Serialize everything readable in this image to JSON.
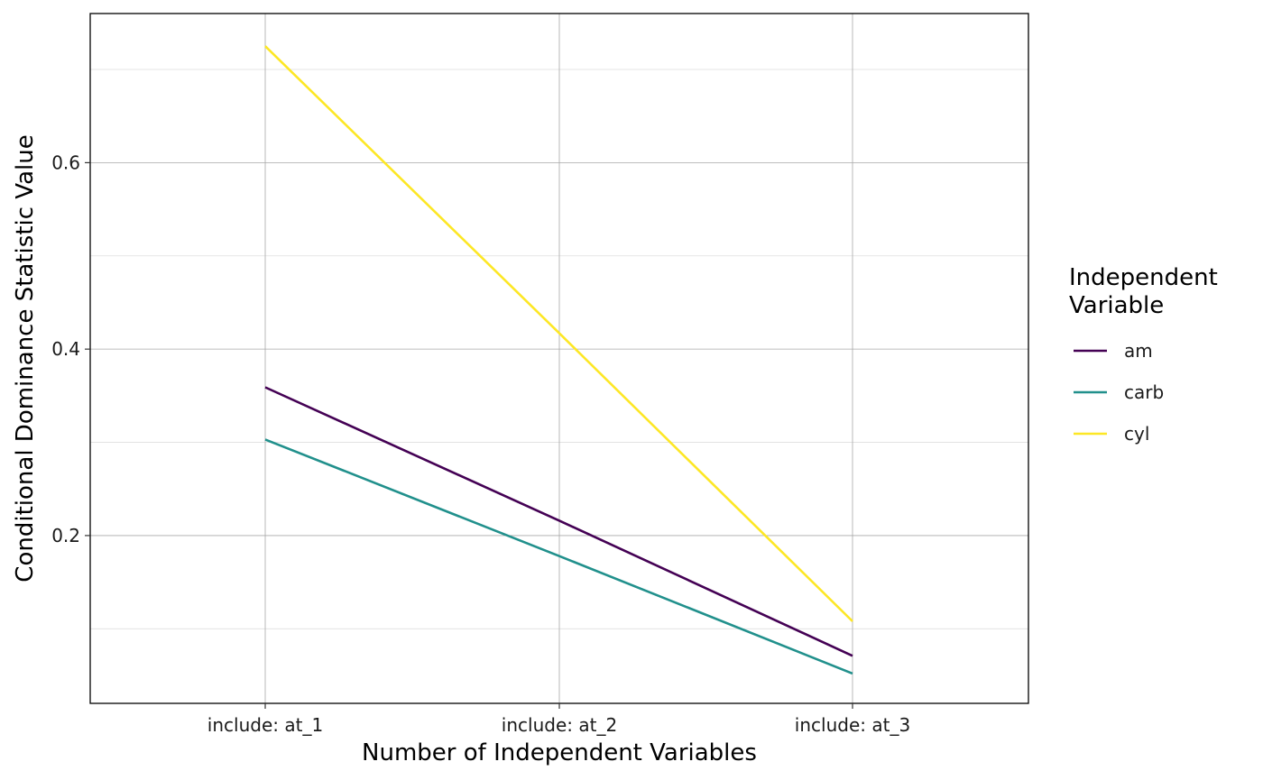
{
  "chart_data": {
    "type": "line",
    "title": "",
    "xlabel": "Number of Independent Variables",
    "ylabel": "Conditional Dominance Statistic Value",
    "categories": [
      "include: at_1",
      "include: at_2",
      "include: at_3"
    ],
    "ylim": [
      0.02,
      0.76
    ],
    "yticks": [
      0.2,
      0.4,
      0.6
    ],
    "ytick_labels": [
      "0.2",
      "0.4",
      "0.6"
    ],
    "grid": true,
    "legend": {
      "title_lines": [
        "Independent",
        "Variable"
      ],
      "position": "right"
    },
    "series": [
      {
        "name": "am",
        "color": "#440154",
        "values": [
          0.359,
          0.216,
          0.071
        ]
      },
      {
        "name": "carb",
        "color": "#21908C",
        "values": [
          0.303,
          0.178,
          0.052
        ]
      },
      {
        "name": "cyl",
        "color": "#FDE725",
        "values": [
          0.725,
          0.417,
          0.108
        ]
      }
    ]
  }
}
